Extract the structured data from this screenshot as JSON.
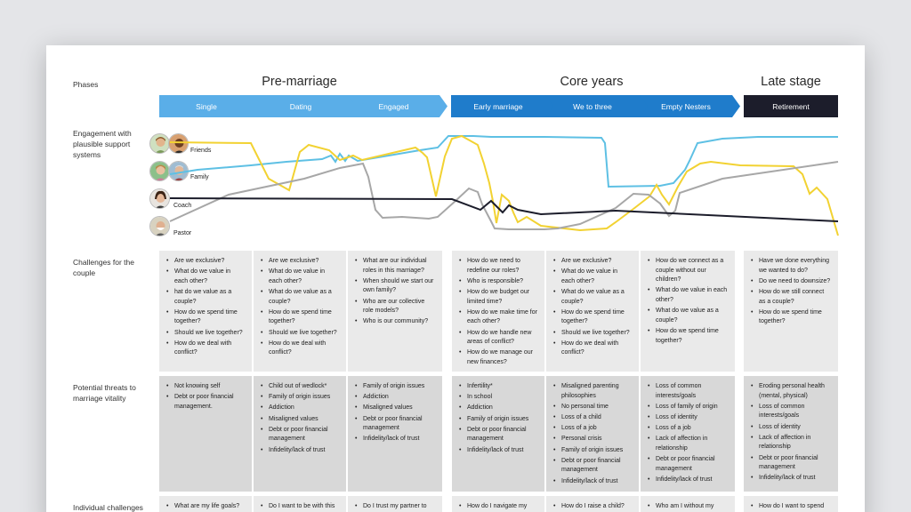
{
  "row_labels": {
    "phases": "Phases",
    "engagement": "Engagement with plausible support systems",
    "challenges": "Challenges for the couple",
    "threats": "Potential threats to marriage vitality",
    "individual": "Individual challenges"
  },
  "phase_titles": [
    "Pre-marriage",
    "Core years",
    "Late stage"
  ],
  "stages": [
    "Single",
    "Dating",
    "Engaged",
    "Early marriage",
    "We to three",
    "Empty Nesters",
    "Retirement"
  ],
  "support_systems": {
    "friends": "Friends",
    "family": "Family",
    "coach": "Coach",
    "pastor": "Pastor"
  },
  "colors": {
    "stage_light": "#5aaee8",
    "stage_dark": "#1f7ccb",
    "stage_retirement": "#1c1d2b",
    "line_friends": "#f2d232",
    "line_family": "#5ec0e4",
    "line_coach": "#1c1d2b",
    "line_pastor": "#a7a7a7"
  },
  "challenges": [
    [
      "Are we exclusive?",
      "What do we value in each other?",
      "hat do we value as a couple?",
      "How do we spend time together?",
      "Should we live together?",
      "How do we deal with conflict?"
    ],
    [
      "Are we exclusive?",
      "What do we value in each other?",
      "What do we value as a couple?",
      "How do we spend time together?",
      "Should we live together?",
      "How do we deal with conflict?"
    ],
    [
      "What are our individual roles in this marriage?",
      "When should we start our own family?",
      "Who are our collective role models?",
      "Who is our community?"
    ],
    [
      "How do we need to redefine our roles?",
      "Who is responsible?",
      "How do we budget our limited time?",
      "How do we make time for each other?",
      "How do we handle new areas of conflict?",
      "How do we manage our new finances?"
    ],
    [
      "Are we exclusive?",
      "What do we value in each other?",
      "What do we value as a couple?",
      "How do we spend time together?",
      "Should we live together?",
      "How do we deal with conflict?"
    ],
    [
      "How do we connect as a couple without our children?",
      "What do we value in each other?",
      "What do we value as a couple?",
      "How do we spend time together?"
    ],
    [
      "Have we done everything we wanted to do?",
      "Do we need to downsize?",
      "How do we still connect as a couple?",
      "How do we spend time together?"
    ]
  ],
  "threats": [
    [
      "Not knowing self",
      "Debt or poor financial management."
    ],
    [
      "Child out of wedlock*",
      "Family of origin issues",
      "Addiction",
      "Misaligned values",
      "Debt or poor financial management",
      "Infidelity/lack of trust"
    ],
    [
      "Family of origin issues",
      "Addiction",
      "Misaligned values",
      "Debt or poor financial management",
      "Infidelity/lack of trust"
    ],
    [
      "Infertility*",
      "In school",
      "Addiction",
      "Family of origin issues",
      "Debt or poor financial management",
      "Infidelity/lack of trust"
    ],
    [
      "Misaligned parenting philosophies",
      "No personal time",
      "Loss of a child",
      "Loss of a job",
      "Personal crisis",
      "Family of origin issues",
      "Debt or poor financial management",
      "Infidelity/lack of trust"
    ],
    [
      "Loss of common interests/goals",
      "Loss of family of origin",
      "Loss of identity",
      "Loss of a job",
      "Lack of affection in relationship",
      "Debt or poor financial management",
      "Infidelity/lack of trust"
    ],
    [
      "Eroding personal health (mental, physical)",
      "Loss of common interests/goals",
      "Loss of identity",
      "Lack of affection in relationship",
      "Debt or poor financial management",
      "Infidelity/lack of trust"
    ]
  ],
  "individual": [
    [
      "What are my life goals?"
    ],
    [
      "Do I want to be with this"
    ],
    [
      "Do I trust my partner to"
    ],
    [
      "How do I navigate my"
    ],
    [
      "How do I raise a child?"
    ],
    [
      "Who am I without my"
    ],
    [
      "How do I want to spend"
    ]
  ]
}
